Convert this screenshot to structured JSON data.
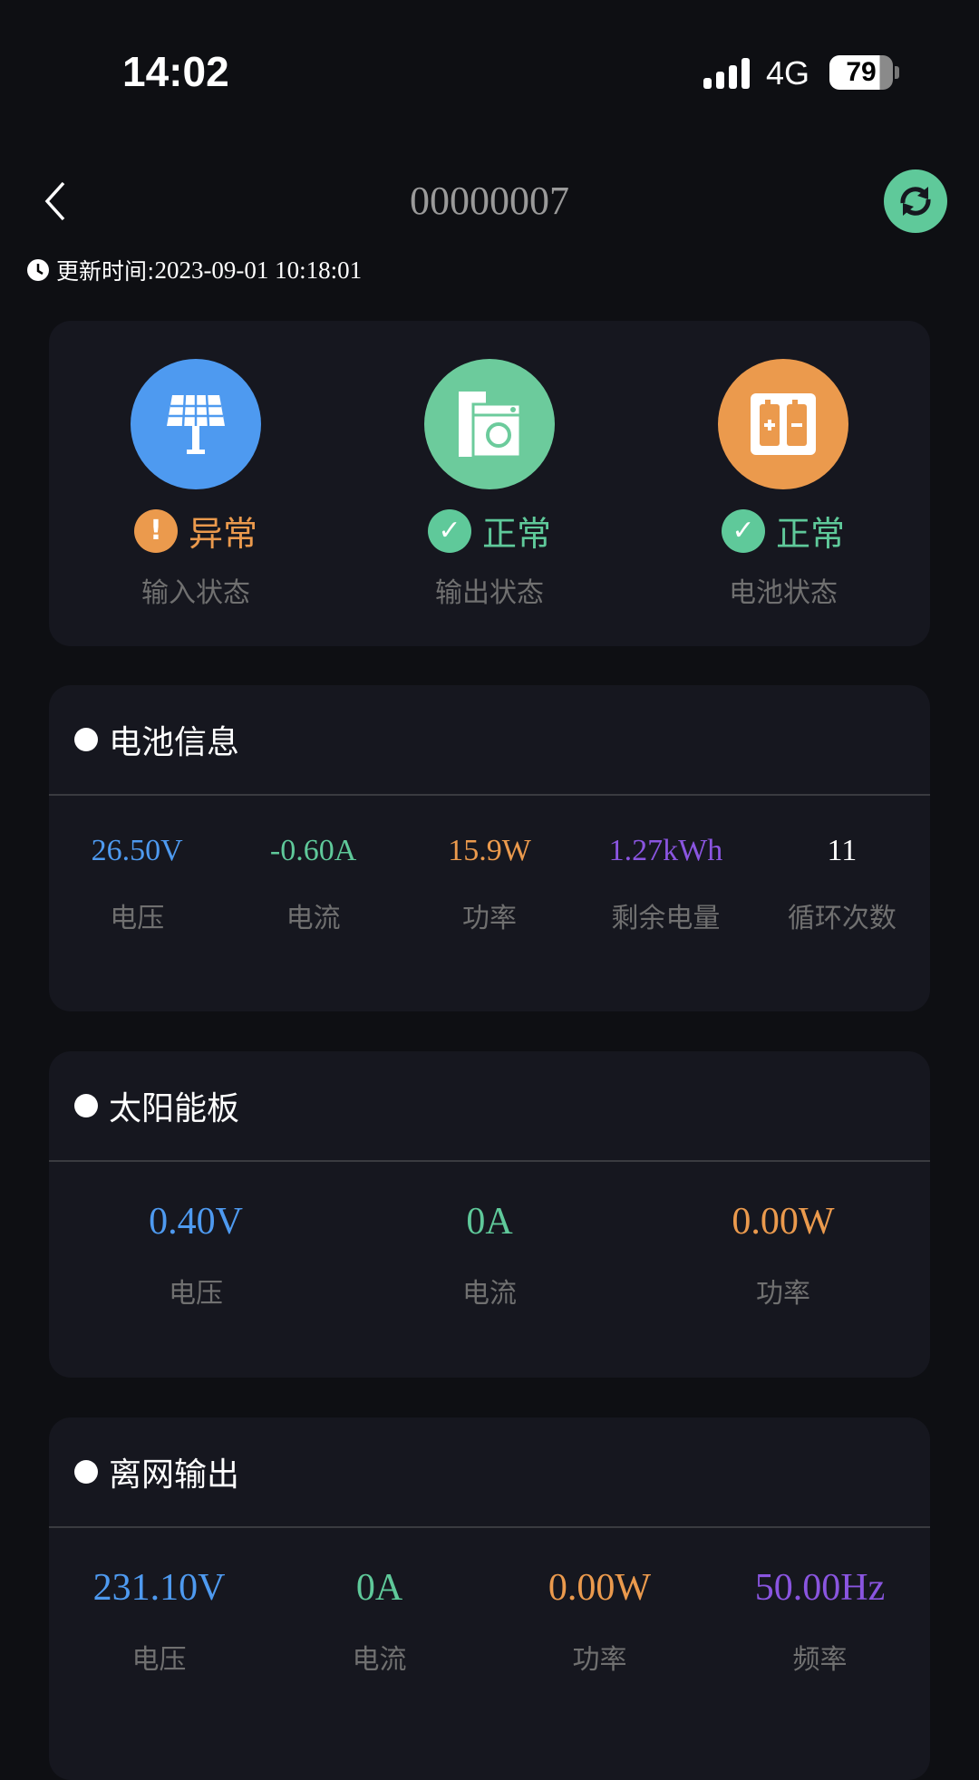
{
  "status_bar": {
    "time": "14:02",
    "network": "4G",
    "battery": "79",
    "battery_level": 79
  },
  "header": {
    "title": "00000007",
    "back_icon": "chevron-left-icon",
    "refresh_icon": "refresh-icon"
  },
  "update": {
    "label": "更新时间:",
    "value": "2023-09-01 10:18:01"
  },
  "status": [
    {
      "icon": "solar-panel-icon",
      "color": "#4e9af0",
      "state": "异常",
      "state_color": "#eb9a4d",
      "badge": "!",
      "label": "输入状态"
    },
    {
      "icon": "appliance-icon",
      "color": "#6ccb9c",
      "state": "正常",
      "state_color": "#5fc99a",
      "badge": "✓",
      "label": "输出状态"
    },
    {
      "icon": "battery-icon",
      "color": "#eb9a4d",
      "state": "正常",
      "state_color": "#5fc99a",
      "badge": "✓",
      "label": "电池状态"
    }
  ],
  "battery_info": {
    "title": "电池信息",
    "items": [
      {
        "value": "26.50V",
        "label": "电压",
        "color": "#4e9af0"
      },
      {
        "value": "-0.60A",
        "label": "电流",
        "color": "#5fc99a"
      },
      {
        "value": "15.9W",
        "label": "功率",
        "color": "#eb9a4d"
      },
      {
        "value": "1.27kWh",
        "label": "剩余电量",
        "color": "#8a55e0"
      },
      {
        "value": "11",
        "label": "循环次数",
        "color": "#ffffff"
      }
    ]
  },
  "solar": {
    "title": "太阳能板",
    "items": [
      {
        "value": "0.40V",
        "label": "电压",
        "color": "#4e9af0"
      },
      {
        "value": "0A",
        "label": "电流",
        "color": "#5fc99a"
      },
      {
        "value": "0.00W",
        "label": "功率",
        "color": "#eb9a4d"
      }
    ]
  },
  "offgrid": {
    "title": "离网输出",
    "items": [
      {
        "value": "231.10V",
        "label": "电压",
        "color": "#4e9af0"
      },
      {
        "value": "0A",
        "label": "电流",
        "color": "#5fc99a"
      },
      {
        "value": "0.00W",
        "label": "功率",
        "color": "#eb9a4d"
      },
      {
        "value": "50.00Hz",
        "label": "频率",
        "color": "#8a55e0"
      }
    ]
  }
}
